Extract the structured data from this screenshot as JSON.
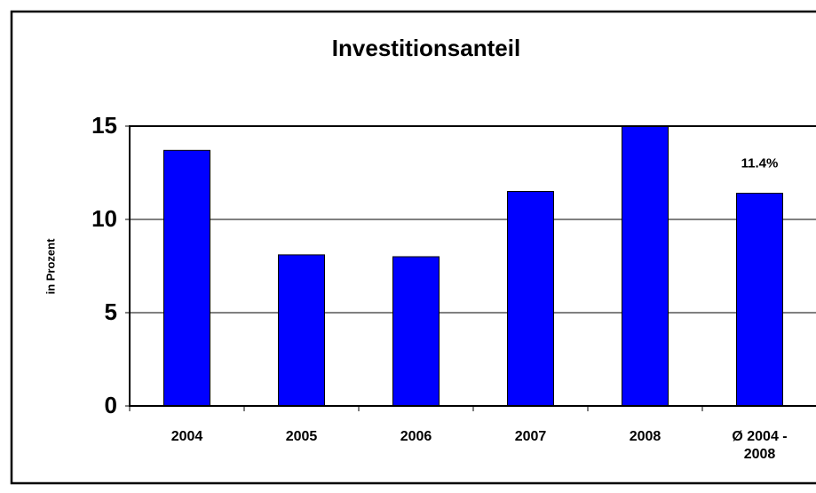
{
  "chart_data": {
    "type": "bar",
    "title": "Investitionsanteil",
    "y_label": "in Prozent",
    "categories": [
      "2004",
      "2005",
      "2006",
      "2007",
      "2008",
      "Ø 2004 - 2008"
    ],
    "values": [
      13.7,
      8.1,
      8.0,
      11.5,
      15.0,
      11.4
    ],
    "value_labels": [
      null,
      null,
      null,
      null,
      null,
      "11.4%"
    ],
    "color": "#0000ff",
    "ylim": [
      0,
      15
    ],
    "yticks": [
      0,
      5,
      10,
      15
    ],
    "grid": true
  }
}
